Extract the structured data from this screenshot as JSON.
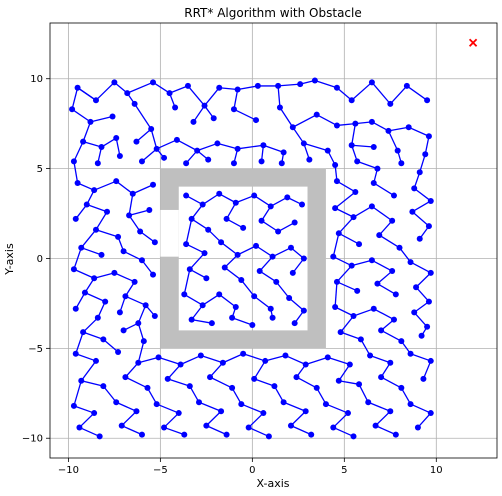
{
  "chart_data": {
    "type": "scatter",
    "title": "RRT* Algorithm with Obstacle",
    "xlabel": "X-axis",
    "ylabel": "Y-axis",
    "xlim": [
      -11,
      13.3
    ],
    "ylim": [
      -11.1,
      13.1
    ],
    "xticks": [
      -10,
      -5,
      0,
      5,
      10
    ],
    "yticks": [
      -10,
      -5,
      0,
      5,
      10
    ],
    "grid": true,
    "colors": {
      "tree": "#0000ff",
      "obstacle": "#bfbfbf",
      "goal": "#ff0000"
    },
    "goal": {
      "x": 12,
      "y": 12,
      "marker": "x"
    },
    "obstacle": {
      "outer": [
        [
          -5,
          -5
        ],
        [
          4,
          -5
        ],
        [
          4,
          5
        ],
        [
          -5,
          5
        ]
      ],
      "inner": [
        [
          -4,
          -4
        ],
        [
          3,
          -4
        ],
        [
          3,
          4
        ],
        [
          -4,
          4
        ]
      ],
      "gap": {
        "x0": -5,
        "x1": -4,
        "y0": 0.1,
        "y1": 2.7
      }
    },
    "tree_nodes": [
      [
        -9.5,
        9.5
      ],
      [
        -8.5,
        8.8
      ],
      [
        -7.5,
        9.8
      ],
      [
        -6.8,
        9.2
      ],
      [
        -5.4,
        9.8
      ],
      [
        -4.5,
        9.2
      ],
      [
        -3.5,
        9.6
      ],
      [
        -2.6,
        8.5
      ],
      [
        -1.8,
        9.5
      ],
      [
        -0.8,
        9.4
      ],
      [
        0.3,
        9.6
      ],
      [
        1.4,
        9.6
      ],
      [
        2.6,
        9.7
      ],
      [
        3.4,
        9.9
      ],
      [
        4.6,
        9.5
      ],
      [
        5.4,
        8.8
      ],
      [
        6.5,
        9.8
      ],
      [
        7.5,
        8.6
      ],
      [
        8.4,
        9.6
      ],
      [
        9.5,
        8.8
      ],
      [
        -9.8,
        8.3
      ],
      [
        -8.8,
        7.6
      ],
      [
        -7.6,
        7.9
      ],
      [
        -6.4,
        8.6
      ],
      [
        -5.5,
        7.2
      ],
      [
        -4.2,
        8.4
      ],
      [
        -3.2,
        7.6
      ],
      [
        -2.1,
        7.8
      ],
      [
        -1.0,
        8.3
      ],
      [
        0.2,
        7.7
      ],
      [
        1.5,
        8.4
      ],
      [
        2.2,
        7.3
      ],
      [
        3.5,
        8.0
      ],
      [
        4.6,
        7.4
      ],
      [
        5.6,
        7.5
      ],
      [
        6.5,
        7.6
      ],
      [
        7.4,
        7.1
      ],
      [
        8.5,
        7.3
      ],
      [
        9.6,
        6.8
      ],
      [
        -9.2,
        6.5
      ],
      [
        -8.2,
        6.2
      ],
      [
        -7.4,
        6.7
      ],
      [
        -6.3,
        6.5
      ],
      [
        -5.2,
        6.1
      ],
      [
        -4.1,
        6.6
      ],
      [
        -3.0,
        6.0
      ],
      [
        -1.9,
        6.4
      ],
      [
        -0.8,
        6.1
      ],
      [
        0.6,
        6.3
      ],
      [
        1.7,
        5.9
      ],
      [
        2.8,
        6.4
      ],
      [
        4.1,
        6.0
      ],
      [
        5.4,
        6.3
      ],
      [
        6.6,
        6.2
      ],
      [
        7.9,
        6.0
      ],
      [
        9.4,
        5.8
      ],
      [
        -9.7,
        5.4
      ],
      [
        -8.4,
        5.3
      ],
      [
        -7.2,
        5.7
      ],
      [
        -6.0,
        5.4
      ],
      [
        -4.8,
        5.6
      ],
      [
        -3.6,
        5.3
      ],
      [
        -2.4,
        5.5
      ],
      [
        -1.0,
        5.3
      ],
      [
        0.5,
        5.4
      ],
      [
        1.6,
        5.3
      ],
      [
        3.1,
        5.5
      ],
      [
        4.5,
        5.2
      ],
      [
        5.7,
        5.4
      ],
      [
        6.8,
        5.0
      ],
      [
        8.1,
        5.3
      ],
      [
        9.1,
        4.8
      ],
      [
        -9.5,
        4.2
      ],
      [
        -8.6,
        3.8
      ],
      [
        -7.4,
        4.3
      ],
      [
        -6.5,
        3.6
      ],
      [
        -5.4,
        4.1
      ],
      [
        -9.0,
        3.0
      ],
      [
        -7.9,
        2.6
      ],
      [
        -6.7,
        2.4
      ],
      [
        -5.6,
        2.7
      ],
      [
        -9.6,
        2.2
      ],
      [
        -8.5,
        1.6
      ],
      [
        -7.3,
        1.2
      ],
      [
        -6.1,
        1.5
      ],
      [
        -5.3,
        0.9
      ],
      [
        -9.3,
        0.6
      ],
      [
        -8.2,
        0.2
      ],
      [
        -7.0,
        0.4
      ],
      [
        -6.0,
        -0.1
      ],
      [
        -9.7,
        -0.6
      ],
      [
        -8.6,
        -1.1
      ],
      [
        -7.5,
        -0.8
      ],
      [
        -6.4,
        -1.3
      ],
      [
        -5.4,
        -0.9
      ],
      [
        -9.1,
        -1.9
      ],
      [
        -8.0,
        -2.4
      ],
      [
        -6.9,
        -2.1
      ],
      [
        -5.8,
        -2.6
      ],
      [
        -9.6,
        -2.8
      ],
      [
        -8.4,
        -3.3
      ],
      [
        -7.2,
        -3.0
      ],
      [
        -6.2,
        -3.6
      ],
      [
        -5.3,
        -3.2
      ],
      [
        -9.2,
        -4.1
      ],
      [
        -8.1,
        -4.5
      ],
      [
        -7.0,
        -4.0
      ],
      [
        -5.9,
        -4.6
      ],
      [
        4.6,
        4.3
      ],
      [
        5.6,
        3.7
      ],
      [
        6.6,
        4.2
      ],
      [
        7.7,
        3.5
      ],
      [
        8.8,
        3.9
      ],
      [
        9.7,
        3.2
      ],
      [
        4.5,
        2.8
      ],
      [
        5.5,
        2.3
      ],
      [
        6.5,
        2.9
      ],
      [
        7.6,
        2.1
      ],
      [
        8.7,
        2.6
      ],
      [
        9.6,
        1.8
      ],
      [
        4.7,
        1.4
      ],
      [
        5.8,
        0.8
      ],
      [
        6.9,
        1.3
      ],
      [
        8.0,
        0.6
      ],
      [
        9.1,
        1.1
      ],
      [
        4.4,
        0.1
      ],
      [
        5.4,
        -0.4
      ],
      [
        6.5,
        -0.1
      ],
      [
        7.6,
        -0.7
      ],
      [
        8.6,
        -0.2
      ],
      [
        9.7,
        -0.8
      ],
      [
        4.6,
        -1.3
      ],
      [
        5.7,
        -1.8
      ],
      [
        6.8,
        -1.4
      ],
      [
        7.8,
        -2.0
      ],
      [
        8.9,
        -1.6
      ],
      [
        9.6,
        -2.4
      ],
      [
        4.5,
        -2.7
      ],
      [
        5.5,
        -3.2
      ],
      [
        6.6,
        -2.8
      ],
      [
        7.7,
        -3.4
      ],
      [
        8.8,
        -3.0
      ],
      [
        9.5,
        -3.8
      ],
      [
        4.8,
        -4.1
      ],
      [
        5.9,
        -4.5
      ],
      [
        7.0,
        -4.0
      ],
      [
        8.1,
        -4.6
      ],
      [
        9.2,
        -4.3
      ],
      [
        -9.6,
        -5.3
      ],
      [
        -8.5,
        -5.7
      ],
      [
        -7.3,
        -5.2
      ],
      [
        -6.2,
        -5.8
      ],
      [
        -5.1,
        -5.5
      ],
      [
        -3.9,
        -5.9
      ],
      [
        -2.8,
        -5.4
      ],
      [
        -1.6,
        -5.8
      ],
      [
        -0.5,
        -5.3
      ],
      [
        0.7,
        -5.7
      ],
      [
        1.8,
        -5.4
      ],
      [
        2.9,
        -5.9
      ],
      [
        4.1,
        -5.5
      ],
      [
        5.3,
        -5.9
      ],
      [
        6.4,
        -5.4
      ],
      [
        7.5,
        -5.8
      ],
      [
        8.6,
        -5.3
      ],
      [
        9.7,
        -5.7
      ],
      [
        -9.3,
        -6.8
      ],
      [
        -8.1,
        -7.1
      ],
      [
        -6.9,
        -6.6
      ],
      [
        -5.7,
        -7.2
      ],
      [
        -4.6,
        -6.7
      ],
      [
        -3.4,
        -7.1
      ],
      [
        -2.3,
        -6.6
      ],
      [
        -1.1,
        -7.2
      ],
      [
        0.1,
        -6.7
      ],
      [
        1.2,
        -7.1
      ],
      [
        2.4,
        -6.6
      ],
      [
        3.5,
        -7.2
      ],
      [
        4.7,
        -6.8
      ],
      [
        5.8,
        -7.0
      ],
      [
        7.0,
        -6.6
      ],
      [
        8.1,
        -7.2
      ],
      [
        9.3,
        -6.7
      ],
      [
        -9.7,
        -8.2
      ],
      [
        -8.6,
        -8.6
      ],
      [
        -7.4,
        -8.0
      ],
      [
        -6.3,
        -8.5
      ],
      [
        -5.2,
        -8.1
      ],
      [
        -4.0,
        -8.6
      ],
      [
        -2.9,
        -8.0
      ],
      [
        -1.7,
        -8.5
      ],
      [
        -0.6,
        -8.1
      ],
      [
        0.6,
        -8.6
      ],
      [
        1.7,
        -8.0
      ],
      [
        2.9,
        -8.5
      ],
      [
        4.0,
        -8.1
      ],
      [
        5.2,
        -8.6
      ],
      [
        6.3,
        -8.0
      ],
      [
        7.5,
        -8.5
      ],
      [
        8.6,
        -8.1
      ],
      [
        9.7,
        -8.6
      ],
      [
        -9.4,
        -9.4
      ],
      [
        -8.3,
        -9.9
      ],
      [
        -7.1,
        -9.3
      ],
      [
        -6.0,
        -9.8
      ],
      [
        -4.8,
        -9.4
      ],
      [
        -3.7,
        -9.8
      ],
      [
        -2.5,
        -9.3
      ],
      [
        -1.4,
        -9.8
      ],
      [
        -0.2,
        -9.4
      ],
      [
        0.9,
        -9.9
      ],
      [
        2.1,
        -9.3
      ],
      [
        3.2,
        -9.8
      ],
      [
        4.4,
        -9.4
      ],
      [
        5.5,
        -9.9
      ],
      [
        6.7,
        -9.3
      ],
      [
        7.8,
        -9.8
      ],
      [
        9.0,
        -9.4
      ],
      [
        -3.6,
        3.5
      ],
      [
        -2.7,
        3.0
      ],
      [
        -1.8,
        3.6
      ],
      [
        -0.9,
        3.1
      ],
      [
        0.1,
        3.5
      ],
      [
        1.0,
        2.9
      ],
      [
        1.9,
        3.4
      ],
      [
        2.7,
        3.0
      ],
      [
        -3.3,
        2.2
      ],
      [
        -2.4,
        1.6
      ],
      [
        -1.4,
        2.2
      ],
      [
        -0.5,
        1.7
      ],
      [
        0.5,
        2.1
      ],
      [
        1.4,
        1.5
      ],
      [
        2.3,
        2.0
      ],
      [
        -3.6,
        0.8
      ],
      [
        -2.6,
        0.3
      ],
      [
        -1.7,
        0.9
      ],
      [
        -0.8,
        0.2
      ],
      [
        0.2,
        0.7
      ],
      [
        1.1,
        0.1
      ],
      [
        2.1,
        0.6
      ],
      [
        2.8,
        0.0
      ],
      [
        -3.4,
        -0.6
      ],
      [
        -2.5,
        -1.1
      ],
      [
        -1.5,
        -0.5
      ],
      [
        -0.6,
        -1.2
      ],
      [
        0.4,
        -0.7
      ],
      [
        1.3,
        -1.3
      ],
      [
        2.2,
        -0.8
      ],
      [
        -3.7,
        -2.0
      ],
      [
        -2.7,
        -2.6
      ],
      [
        -1.8,
        -2.0
      ],
      [
        -0.9,
        -2.7
      ],
      [
        0.1,
        -2.1
      ],
      [
        1.0,
        -2.8
      ],
      [
        2.0,
        -2.2
      ],
      [
        2.8,
        -2.9
      ],
      [
        -3.3,
        -3.4
      ],
      [
        -2.2,
        -3.6
      ],
      [
        -1.1,
        -3.3
      ],
      [
        0.0,
        -3.7
      ],
      [
        1.1,
        -3.3
      ],
      [
        2.3,
        -3.6
      ]
    ]
  }
}
